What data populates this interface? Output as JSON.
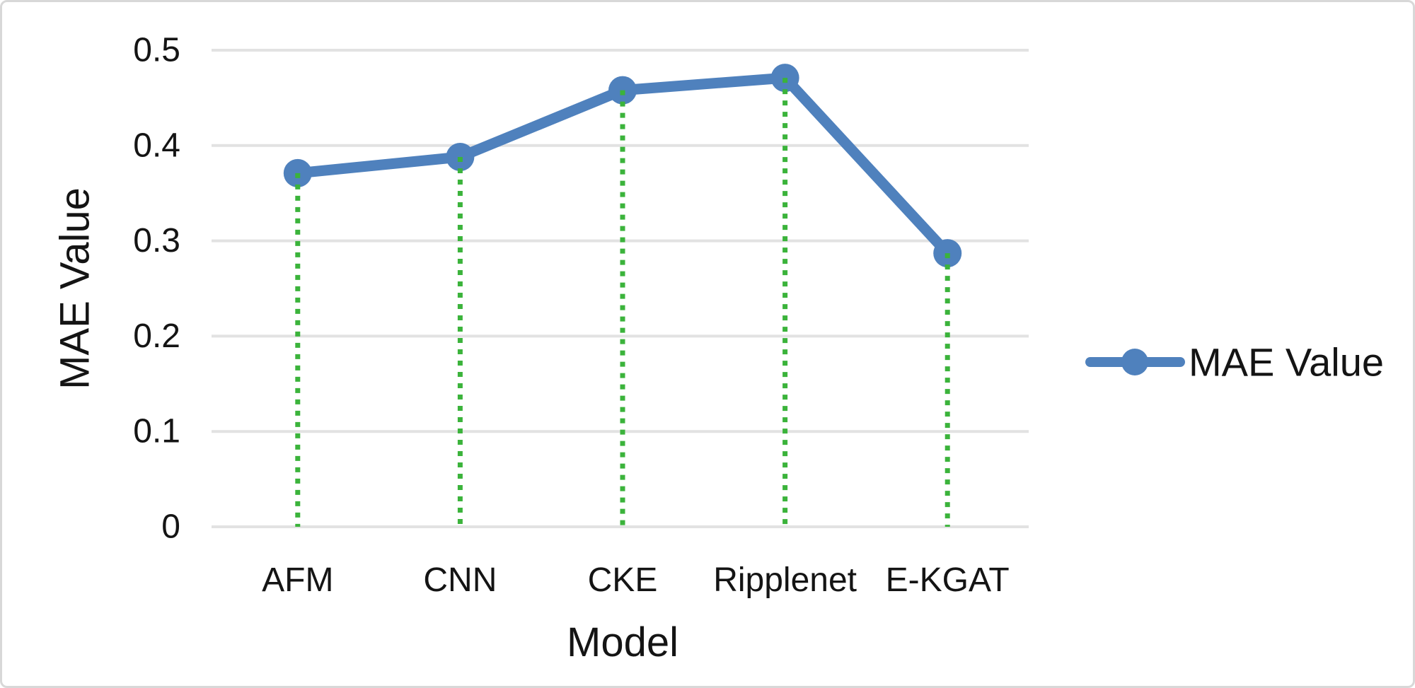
{
  "chart_data": {
    "type": "line",
    "title": "",
    "xlabel": "Model",
    "ylabel": "MAE Value",
    "categories": [
      "AFM",
      "CNN",
      "CKE",
      "Ripplenet",
      "E-KGAT"
    ],
    "series": [
      {
        "name": "MAE Value",
        "values": [
          0.371,
          0.388,
          0.458,
          0.471,
          0.287
        ]
      }
    ],
    "ylim": [
      0,
      0.5
    ],
    "yticks": [
      0,
      0.1,
      0.2,
      0.3,
      0.4,
      0.5
    ],
    "ytick_labels": [
      "0",
      "0.1",
      "0.2",
      "0.3",
      "0.4",
      "0.5"
    ],
    "grid": "horizontal",
    "legend_position": "right",
    "drop_lines": true,
    "colors": {
      "series": "#4F81BD",
      "drop_line": "#3BB33B",
      "gridline": "#E2E2E2",
      "text": "#141414",
      "background": "#FFFFFF",
      "border": "#D8D8D8"
    }
  }
}
